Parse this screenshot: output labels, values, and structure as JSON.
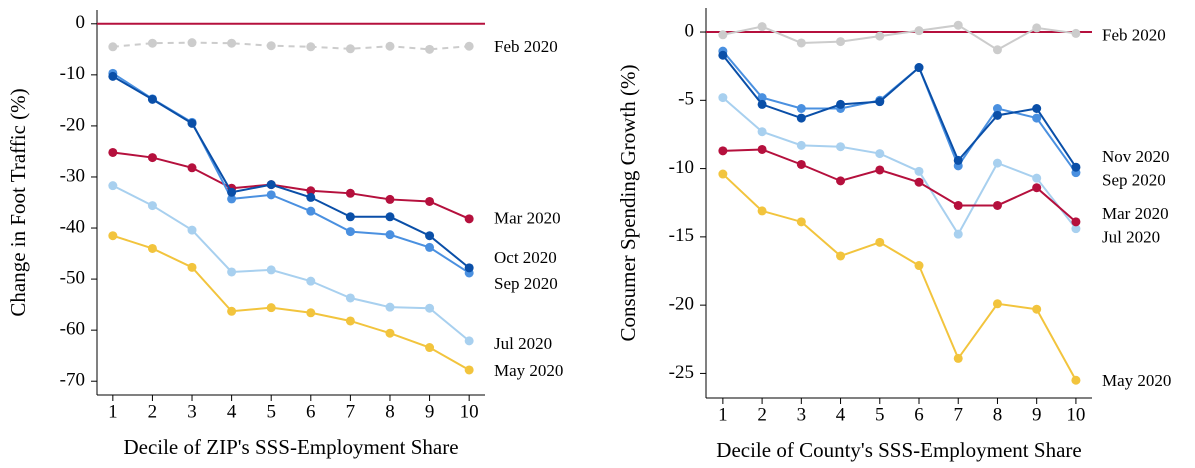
{
  "chart_data": [
    {
      "type": "line",
      "x_label": "Decile of ZIP's SSS-Employment Share",
      "y_label": "Change in Foot Traffic (%)",
      "x": [
        1,
        2,
        3,
        4,
        5,
        6,
        7,
        8,
        9,
        10
      ],
      "xlim": [
        0.6,
        10.4
      ],
      "xticks": [
        1,
        2,
        3,
        4,
        5,
        6,
        7,
        8,
        9,
        10
      ],
      "ylim": [
        -72.7,
        2.7
      ],
      "yticks": [
        0,
        -10,
        -20,
        -30,
        -40,
        -50,
        -60,
        -70
      ],
      "reference_line": 0,
      "reference_color": "#b5103d",
      "series": [
        {
          "name": "Feb 2020",
          "color": "#cccccc",
          "line_style": "dashed",
          "values": [
            -4.5,
            -3.8,
            -3.7,
            -3.8,
            -4.3,
            -4.5,
            -4.9,
            -4.4,
            -5.0,
            -4.4
          ]
        },
        {
          "name": "Jul 2020",
          "color": "#a8d0ef",
          "values": [
            -31.7,
            -35.6,
            -40.4,
            -48.6,
            -48.2,
            -50.4,
            -53.7,
            -55.5,
            -55.7,
            -62.1
          ]
        },
        {
          "name": "May 2020",
          "color": "#f2c43d",
          "values": [
            -41.5,
            -44.0,
            -47.7,
            -56.3,
            -55.6,
            -56.6,
            -58.2,
            -60.6,
            -63.4,
            -67.8
          ]
        },
        {
          "name": "Mar 2020",
          "color": "#b5103d",
          "values": [
            -25.2,
            -26.2,
            -28.2,
            -32.2,
            -31.5,
            -32.7,
            -33.2,
            -34.4,
            -34.8,
            -38.2
          ]
        },
        {
          "name": "Sep 2020",
          "color": "#4a90e0",
          "values": [
            -9.7,
            -14.7,
            -19.3,
            -34.3,
            -33.5,
            -36.7,
            -40.7,
            -41.3,
            -43.8,
            -48.8
          ]
        },
        {
          "name": "Oct 2020",
          "color": "#0a4fa8",
          "values": [
            -10.3,
            -14.8,
            -19.5,
            -33.0,
            -31.5,
            -34.0,
            -37.8,
            -37.8,
            -41.5,
            -47.8
          ]
        }
      ]
    },
    {
      "type": "line",
      "x_label": "Decile of County's SSS-Employment Share",
      "y_label": "Consumer Spending Growth (%)",
      "x": [
        1,
        2,
        3,
        4,
        5,
        6,
        7,
        8,
        9,
        10
      ],
      "xlim": [
        0.57,
        10.41
      ],
      "xticks": [
        1,
        2,
        3,
        4,
        5,
        6,
        7,
        8,
        9,
        10
      ],
      "ylim": [
        -26.8,
        1.76
      ],
      "yticks": [
        0,
        -5,
        -10,
        -15,
        -20,
        -25
      ],
      "reference_line": 0,
      "reference_color": "#b5103d",
      "series": [
        {
          "name": "Feb 2020",
          "color": "#cccccc",
          "values": [
            -0.2,
            0.4,
            -0.8,
            -0.7,
            -0.3,
            0.1,
            0.5,
            -1.3,
            0.3,
            -0.1
          ]
        },
        {
          "name": "Jul 2020",
          "color": "#a8d0ef",
          "values": [
            -4.8,
            -7.3,
            -8.3,
            -8.4,
            -8.9,
            -10.2,
            -14.8,
            -9.6,
            -10.7,
            -14.4
          ]
        },
        {
          "name": "May 2020",
          "color": "#f2c43d",
          "values": [
            -10.4,
            -13.1,
            -13.9,
            -16.4,
            -15.4,
            -17.1,
            -23.9,
            -19.9,
            -20.3,
            -25.5
          ]
        },
        {
          "name": "Mar 2020",
          "color": "#b5103d",
          "values": [
            -8.7,
            -8.6,
            -9.7,
            -10.9,
            -10.1,
            -11.0,
            -12.7,
            -12.7,
            -11.4,
            -13.9
          ]
        },
        {
          "name": "Sep 2020",
          "color": "#4a90e0",
          "values": [
            -1.4,
            -4.8,
            -5.6,
            -5.6,
            -5.0,
            -2.6,
            -9.8,
            -5.6,
            -6.3,
            -10.3
          ]
        },
        {
          "name": "Nov 2020",
          "color": "#0a4fa8",
          "values": [
            -1.7,
            -5.3,
            -6.3,
            -5.3,
            -5.1,
            -2.6,
            -9.4,
            -6.1,
            -5.6,
            -9.9
          ]
        }
      ]
    }
  ]
}
